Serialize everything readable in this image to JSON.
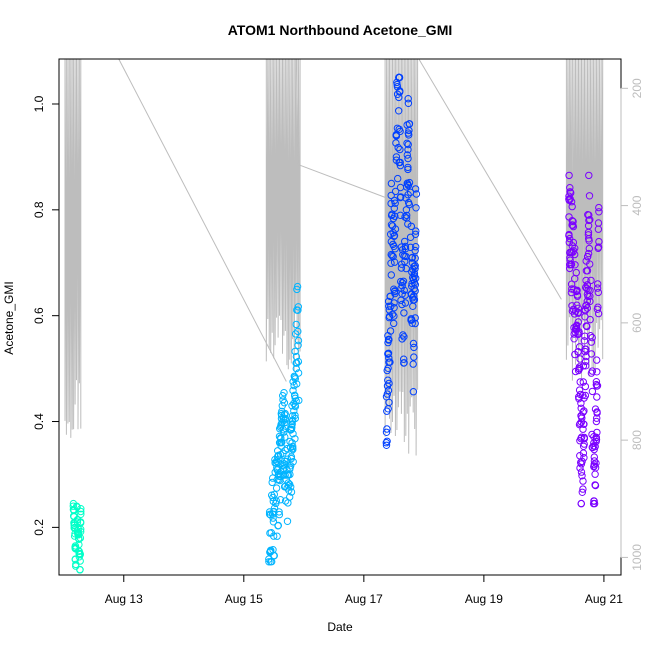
{
  "chart_data": {
    "type": "scatter",
    "title": "ATOM1 Northbound Acetone_GMI",
    "xlabel": "Date",
    "ylabel": "Acetone_GMI",
    "xlim": [
      "2016-08-11T22:06",
      "2016-08-21T06:50"
    ],
    "ylim": [
      0.11,
      1.085
    ],
    "x_ticks": [
      {
        "date": "2016-08-13",
        "label": "Aug 13"
      },
      {
        "date": "2016-08-15",
        "label": "Aug 15"
      },
      {
        "date": "2016-08-17",
        "label": "Aug 17"
      },
      {
        "date": "2016-08-19",
        "label": "Aug 19"
      },
      {
        "date": "2016-08-21",
        "label": "Aug 21"
      }
    ],
    "y_ticks": [
      {
        "value": 0.2,
        "label": "0.2"
      },
      {
        "value": 0.4,
        "label": "0.4"
      },
      {
        "value": 0.6,
        "label": "0.6"
      },
      {
        "value": 0.8,
        "label": "0.8"
      },
      {
        "value": 1.0,
        "label": "1.0"
      }
    ],
    "secondary_axis": {
      "label": "",
      "reversed": true,
      "color": "#bdbdbd",
      "ylim": [
        1030,
        150
      ],
      "ticks": [
        {
          "value": 200,
          "label": "200"
        },
        {
          "value": 400,
          "label": "400"
        },
        {
          "value": 600,
          "label": "600"
        },
        {
          "value": 800,
          "label": "800"
        },
        {
          "value": 1000,
          "label": "1000"
        }
      ]
    },
    "grid": false,
    "legend": "none",
    "marker": "open-circle",
    "colors": {
      "series": [
        "#00ffc8",
        "#00b4ff",
        "#0040ff",
        "#7a00ff"
      ],
      "altitude_line": "#bdbdbd"
    },
    "series": [
      {
        "date": "2016-08-12",
        "color": "#00ffc8",
        "start": "2016-08-12T03:50",
        "end": "2016-08-12T06:50",
        "y_range": [
          0.12,
          0.245
        ],
        "count": 50,
        "points": [
          {
            "x": "2016-08-12T03:50",
            "y": 0.24
          },
          {
            "x": "2016-08-12T04:05",
            "y": 0.22
          },
          {
            "x": "2016-08-12T04:20",
            "y": 0.2
          },
          {
            "x": "2016-08-12T04:35",
            "y": 0.16
          },
          {
            "x": "2016-08-12T04:50",
            "y": 0.13
          },
          {
            "x": "2016-08-12T05:10",
            "y": 0.24
          },
          {
            "x": "2016-08-12T05:30",
            "y": 0.21
          },
          {
            "x": "2016-08-12T05:50",
            "y": 0.19
          },
          {
            "x": "2016-08-12T06:10",
            "y": 0.15
          },
          {
            "x": "2016-08-12T06:30",
            "y": 0.12
          },
          {
            "x": "2016-08-12T06:50",
            "y": 0.23
          }
        ]
      },
      {
        "date": "2016-08-15",
        "color": "#00b4ff",
        "start": "2016-08-15T10:00",
        "end": "2016-08-15T22:00",
        "y_range": [
          0.135,
          0.66
        ],
        "count": 170,
        "points": [
          {
            "x": "2016-08-15T10:00",
            "y": 0.14
          },
          {
            "x": "2016-08-15T11:00",
            "y": 0.19
          },
          {
            "x": "2016-08-15T12:00",
            "y": 0.23
          },
          {
            "x": "2016-08-15T13:00",
            "y": 0.25
          },
          {
            "x": "2016-08-15T14:00",
            "y": 0.3
          },
          {
            "x": "2016-08-15T15:00",
            "y": 0.36
          },
          {
            "x": "2016-08-15T16:00",
            "y": 0.38
          },
          {
            "x": "2016-08-15T17:00",
            "y": 0.29
          },
          {
            "x": "2016-08-15T18:00",
            "y": 0.27
          },
          {
            "x": "2016-08-15T19:00",
            "y": 0.33
          },
          {
            "x": "2016-08-15T20:00",
            "y": 0.42
          },
          {
            "x": "2016-08-15T21:00",
            "y": 0.5
          },
          {
            "x": "2016-08-15T21:30",
            "y": 0.655
          },
          {
            "x": "2016-08-15T22:00",
            "y": 0.44
          }
        ]
      },
      {
        "date": "2016-08-17",
        "color": "#0040ff",
        "start": "2016-08-17T09:00",
        "end": "2016-08-17T21:00",
        "y_range": [
          0.355,
          1.05
        ],
        "count": 200,
        "points": [
          {
            "x": "2016-08-17T09:00",
            "y": 0.36
          },
          {
            "x": "2016-08-17T10:00",
            "y": 0.52
          },
          {
            "x": "2016-08-17T11:00",
            "y": 0.74
          },
          {
            "x": "2016-08-17T12:00",
            "y": 0.65
          },
          {
            "x": "2016-08-17T13:00",
            "y": 0.9
          },
          {
            "x": "2016-08-17T14:00",
            "y": 1.05
          },
          {
            "x": "2016-08-17T15:00",
            "y": 0.69
          },
          {
            "x": "2016-08-17T16:00",
            "y": 0.56
          },
          {
            "x": "2016-08-17T17:00",
            "y": 0.8
          },
          {
            "x": "2016-08-17T18:00",
            "y": 0.95
          },
          {
            "x": "2016-08-17T19:00",
            "y": 0.64
          },
          {
            "x": "2016-08-17T20:00",
            "y": 0.54
          },
          {
            "x": "2016-08-17T21:00",
            "y": 0.83
          }
        ]
      },
      {
        "date": "2016-08-20",
        "color": "#7a00ff",
        "start": "2016-08-20T10:00",
        "end": "2016-08-20T22:00",
        "y_range": [
          0.245,
          0.865
        ],
        "count": 220,
        "points": [
          {
            "x": "2016-08-20T10:00",
            "y": 0.82
          },
          {
            "x": "2016-08-20T11:00",
            "y": 0.72
          },
          {
            "x": "2016-08-20T12:00",
            "y": 0.65
          },
          {
            "x": "2016-08-20T13:00",
            "y": 0.58
          },
          {
            "x": "2016-08-20T14:00",
            "y": 0.5
          },
          {
            "x": "2016-08-20T15:00",
            "y": 0.32
          },
          {
            "x": "2016-08-20T16:00",
            "y": 0.42
          },
          {
            "x": "2016-08-20T17:00",
            "y": 0.62
          },
          {
            "x": "2016-08-20T18:00",
            "y": 0.78
          },
          {
            "x": "2016-08-20T19:00",
            "y": 0.55
          },
          {
            "x": "2016-08-20T20:00",
            "y": 0.25
          },
          {
            "x": "2016-08-20T21:00",
            "y": 0.4
          },
          {
            "x": "2016-08-20T22:00",
            "y": 0.74
          }
        ]
      }
    ],
    "altitude_trace": {
      "flights": [
        {
          "start": "2016-08-12T00:30",
          "end": "2016-08-12T06:50",
          "min": 800,
          "top": 150
        },
        {
          "start": "2016-08-15T09:00",
          "end": "2016-08-15T22:30",
          "min": 700,
          "top": 150
        },
        {
          "start": "2016-08-17T08:30",
          "end": "2016-08-17T21:30",
          "min": 830,
          "top": 150
        },
        {
          "start": "2016-08-20T09:00",
          "end": "2016-08-20T23:30",
          "min": 700,
          "top": 150
        }
      ],
      "ferry_legs": [
        {
          "from": [
            "2016-08-12T22:00",
            150
          ],
          "to": [
            "2016-08-15T17:00",
            700
          ]
        },
        {
          "from": [
            "2016-08-15T21:00",
            150
          ],
          "to": [
            "2016-08-15T21:45",
            330
          ]
        },
        {
          "from": [
            "2016-08-15T21:45",
            330
          ],
          "to": [
            "2016-08-17T11:00",
            390
          ]
        },
        {
          "from": [
            "2016-08-17T22:00",
            150
          ],
          "to": [
            "2016-08-20T07:00",
            560
          ]
        }
      ]
    }
  }
}
